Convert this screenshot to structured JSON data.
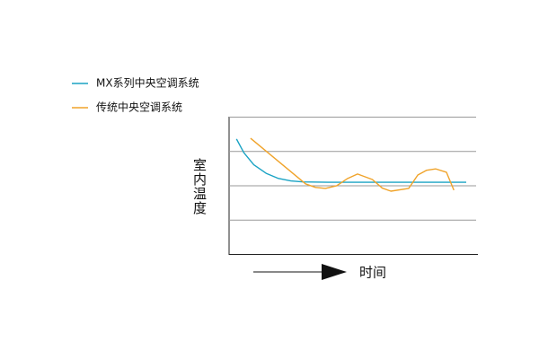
{
  "chart_data": {
    "type": "line",
    "x_label": "时间",
    "y_label": "室内温度",
    "series": [
      {
        "name": "MX系列中央空调系统",
        "color": "#1aa3c4",
        "x": [
          0.3,
          0.6,
          1,
          1.5,
          2,
          2.5,
          3,
          4,
          6,
          8,
          9.6
        ],
        "values": [
          3.35,
          2.95,
          2.6,
          2.35,
          2.2,
          2.13,
          2.1,
          2.09,
          2.09,
          2.09,
          2.09
        ]
      },
      {
        "name": "传统中央空调系统",
        "color": "#f0a32a",
        "x": [
          0.87,
          3.1,
          3.5,
          3.9,
          4.36,
          4.8,
          5.2,
          5.8,
          6.2,
          6.55,
          7.27,
          7.64,
          8.0,
          8.36,
          8.8,
          9.1
        ],
        "values": [
          3.37,
          2.04,
          1.94,
          1.91,
          1.99,
          2.2,
          2.33,
          2.17,
          1.92,
          1.83,
          1.91,
          2.3,
          2.44,
          2.48,
          2.38,
          1.86
        ]
      }
    ],
    "xlim": [
      0,
      10
    ],
    "ylim": [
      0,
      4
    ],
    "yticks": [
      1,
      2,
      3,
      4
    ],
    "grid": true
  }
}
